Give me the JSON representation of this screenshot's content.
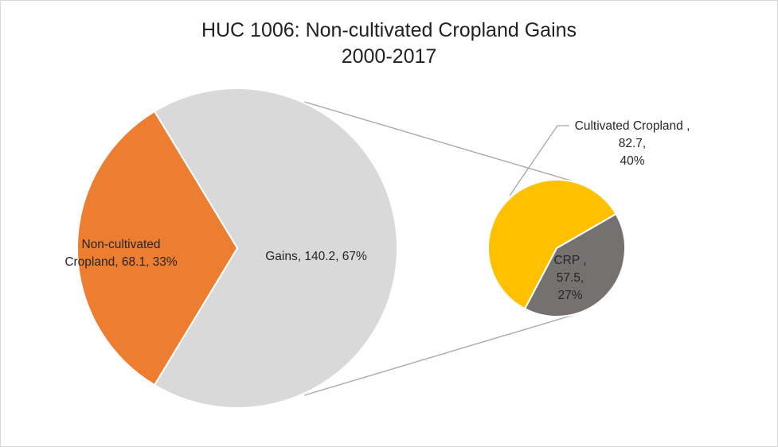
{
  "chart_data": {
    "type": "pie",
    "title": "HUC 1006: Non-cultivated Cropland Gains",
    "subtitle": "2000-2017",
    "main_pie": {
      "slices": [
        {
          "name": "Gains",
          "value": 140.2,
          "percent": "67%",
          "color": "#d9d9d9",
          "label": "Gains, 140.2, 67%"
        },
        {
          "name": "Non-cultivated Cropland",
          "value": 68.1,
          "percent": "33%",
          "color": "#ed7d31",
          "label_lines": [
            "Non-cultivated",
            "Cropland, 68.1, 33%"
          ]
        }
      ]
    },
    "sub_pie": {
      "parent": "Gains",
      "slices": [
        {
          "name": "Cultivated Cropland",
          "value": 82.7,
          "percent": "40%",
          "color": "#ffc000",
          "label_lines": [
            "Cultivated Cropland ,",
            "82.7,",
            "40%"
          ]
        },
        {
          "name": "CRP",
          "value": 57.5,
          "percent": "27%",
          "color": "#767171",
          "label_lines": [
            "CRP ,",
            "57.5,",
            "27%"
          ]
        }
      ]
    },
    "connector_color": "#a6a6a6",
    "grid": false,
    "legend": "none"
  }
}
